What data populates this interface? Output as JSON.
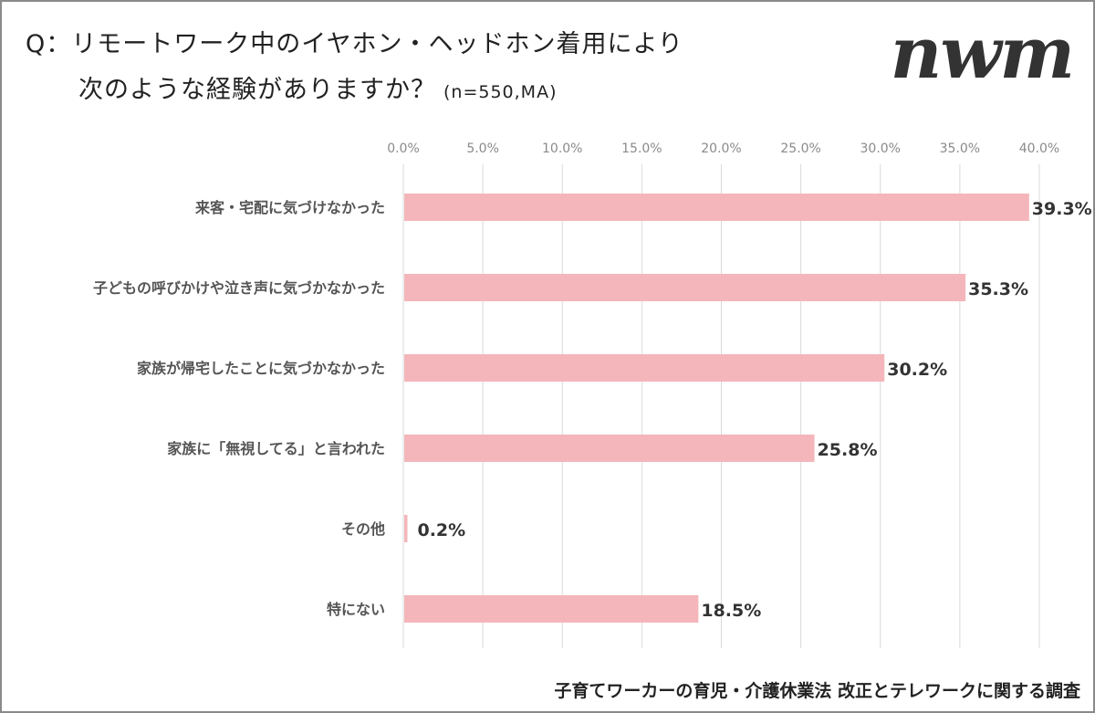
{
  "header": {
    "title_line1": "Q：リモートワーク中のイヤホン・ヘッドホン着用により",
    "title_line2": "次のような経験がありますか？",
    "note": "(n=550,MA)",
    "logo": "nwm"
  },
  "footer": "子育てワーカーの育児・介護休業法 改正とテレワークに関する調査",
  "colors": {
    "bar": "#f4b6ba",
    "grid": "#d9d9d9"
  },
  "chart_data": {
    "type": "bar",
    "orientation": "horizontal",
    "title": "Q：リモートワーク中のイヤホン・ヘッドホン着用により次のような経験がありますか？",
    "categories": [
      "来客・宅配に気づけなかった",
      "子どもの呼びかけや泣き声に気づかなかった",
      "家族が帰宅したことに気づかなかった",
      "家族に「無視してる」と言われた",
      "その他",
      "特にない"
    ],
    "values": [
      39.3,
      35.3,
      30.2,
      25.8,
      0.2,
      18.5
    ],
    "value_labels": [
      "39.3%",
      "35.3%",
      "30.2%",
      "25.8%",
      "0.2%",
      "18.5%"
    ],
    "xlim": [
      0,
      40
    ],
    "xticks": [
      "0.0%",
      "5.0%",
      "10.0%",
      "15.0%",
      "20.0%",
      "25.0%",
      "30.0%",
      "35.0%",
      "40.0%"
    ],
    "xaxis_position": "top",
    "grid": true,
    "legend": "none"
  }
}
